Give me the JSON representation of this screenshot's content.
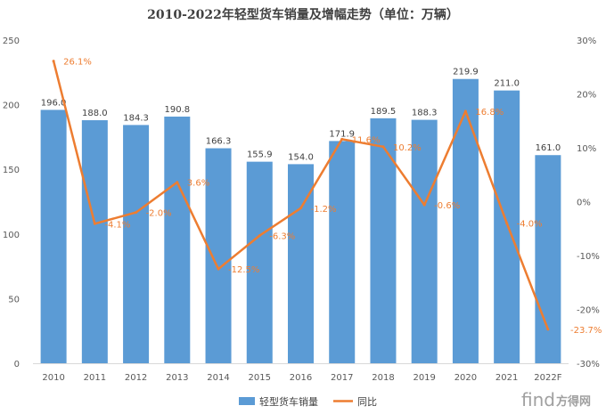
{
  "chart_data": {
    "type": "bar+line",
    "title": "2010-2022年轻型货车销量及增幅走势（单位：万辆）",
    "categories": [
      "2010",
      "2011",
      "2012",
      "2013",
      "2014",
      "2015",
      "2016",
      "2017",
      "2018",
      "2019",
      "2020",
      "2021",
      "2022F"
    ],
    "series": [
      {
        "name": "轻型货车销量",
        "type": "bar",
        "axis": "left",
        "color": "#5b9bd5",
        "values": [
          196.0,
          188.0,
          184.3,
          190.8,
          166.3,
          155.9,
          154.0,
          171.9,
          189.5,
          188.3,
          219.9,
          211.0,
          161.0
        ],
        "labels": [
          "196.0",
          "188.0",
          "184.3",
          "190.8",
          "166.3",
          "155.9",
          "154.0",
          "171.9",
          "189.5",
          "188.3",
          "219.9",
          "211.0",
          "161.0"
        ]
      },
      {
        "name": "同比",
        "type": "line",
        "axis": "right",
        "color": "#ed7d31",
        "values": [
          26.1,
          -4.1,
          -2.0,
          3.6,
          -12.5,
          -6.3,
          -1.2,
          11.6,
          10.2,
          -0.6,
          16.8,
          -4.0,
          -23.7
        ],
        "labels": [
          "26.1%",
          "-4.1%",
          "-2.0%",
          "3.6%",
          "-12.5%",
          "-6.3%",
          "-1.2%",
          "11.6%",
          "10.2%",
          "-0.6%",
          "16.8%",
          "-4.0%",
          "-23.7%"
        ]
      }
    ],
    "y_left": {
      "ylim": [
        0,
        250
      ],
      "ticks": [
        "0",
        "50",
        "100",
        "150",
        "200",
        "250"
      ]
    },
    "y_right": {
      "ylim": [
        -30,
        30
      ],
      "ticks": [
        "-30%",
        "-20%",
        "-10%",
        "0%",
        "10%",
        "20%",
        "30%"
      ]
    },
    "grid": false,
    "legend_position": "bottom"
  },
  "watermark": {
    "logo": "find",
    "text": "方得网"
  }
}
